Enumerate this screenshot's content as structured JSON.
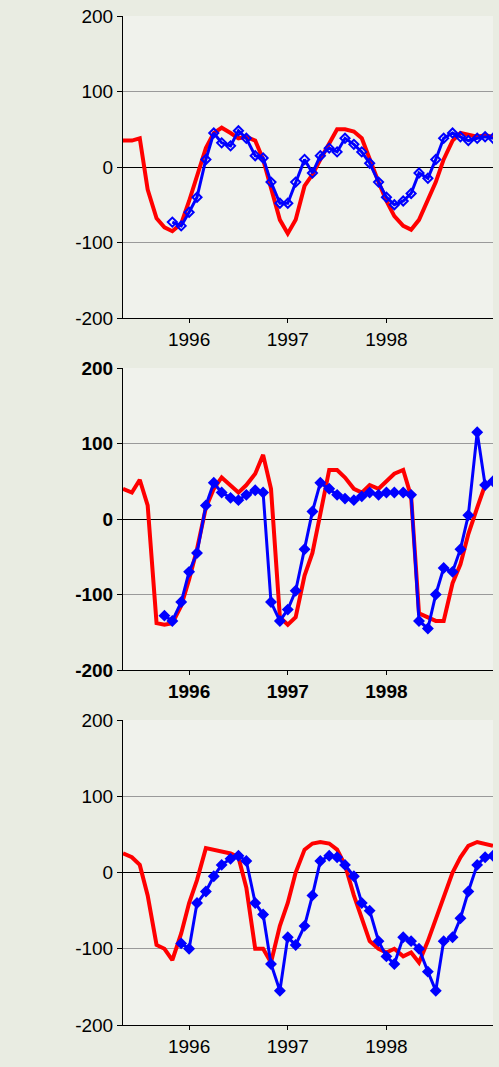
{
  "chart_data": [
    {
      "type": "line",
      "x": [
        1995.33,
        1995.42,
        1995.5,
        1995.58,
        1995.67,
        1995.75,
        1995.83,
        1995.92,
        1996,
        1996.08,
        1996.17,
        1996.25,
        1996.33,
        1996.42,
        1996.5,
        1996.58,
        1996.67,
        1996.75,
        1996.83,
        1996.92,
        1997,
        1997.08,
        1997.17,
        1997.25,
        1997.33,
        1997.42,
        1997.5,
        1997.58,
        1997.67,
        1997.75,
        1997.83,
        1997.92,
        1998,
        1998.08,
        1998.17,
        1998.25,
        1998.33,
        1998.42,
        1998.5,
        1998.58,
        1998.67,
        1998.75,
        1998.83,
        1998.92,
        1999,
        1999.08
      ],
      "series": [
        {
          "color": "#ff0000",
          "line_style": "solid",
          "values": [
            35,
            35,
            38,
            -30,
            -68,
            -80,
            -85,
            -75,
            -45,
            -10,
            25,
            45,
            52,
            45,
            38,
            40,
            35,
            10,
            -30,
            -70,
            -88,
            -70,
            -25,
            -10,
            10,
            30,
            50,
            50,
            47,
            38,
            10,
            -20,
            -45,
            -65,
            -78,
            -83,
            -70,
            -45,
            -20,
            10,
            35,
            45,
            42,
            40,
            42,
            40
          ]
        },
        {
          "color": "#0000ff",
          "line_style": "solid",
          "marker": "diamond-open",
          "values": [
            null,
            null,
            null,
            null,
            null,
            null,
            -73,
            -78,
            -60,
            -40,
            10,
            45,
            32,
            28,
            48,
            38,
            15,
            12,
            -20,
            -48,
            -48,
            -20,
            10,
            -8,
            15,
            25,
            20,
            38,
            30,
            20,
            5,
            -20,
            -40,
            -50,
            -45,
            -35,
            -8,
            -15,
            10,
            38,
            45,
            40,
            35,
            38,
            40,
            38
          ]
        }
      ],
      "xlim": [
        1995.33,
        1999.08
      ],
      "xticks": [
        1996,
        1997,
        1998
      ],
      "ylim": [
        -200,
        200
      ],
      "yticks": [
        -200,
        -100,
        0,
        100,
        200
      ],
      "grid": true
    },
    {
      "type": "line",
      "x": [
        1995.33,
        1995.42,
        1995.5,
        1995.58,
        1995.67,
        1995.75,
        1995.83,
        1995.92,
        1996,
        1996.08,
        1996.17,
        1996.25,
        1996.33,
        1996.42,
        1996.5,
        1996.58,
        1996.67,
        1996.75,
        1996.83,
        1996.92,
        1997,
        1997.08,
        1997.17,
        1997.25,
        1997.33,
        1997.42,
        1997.5,
        1997.58,
        1997.67,
        1997.75,
        1997.83,
        1997.92,
        1998,
        1998.08,
        1998.17,
        1998.25,
        1998.33,
        1998.42,
        1998.5,
        1998.58,
        1998.67,
        1998.75,
        1998.83,
        1998.92,
        1999,
        1999.08
      ],
      "series": [
        {
          "color": "#ff0000",
          "line_style": "solid",
          "values": [
            40,
            35,
            52,
            18,
            -138,
            -140,
            -138,
            -115,
            -80,
            -40,
            15,
            40,
            55,
            45,
            35,
            45,
            60,
            85,
            40,
            -130,
            -140,
            -130,
            -75,
            -45,
            10,
            65,
            65,
            55,
            40,
            35,
            45,
            40,
            50,
            60,
            65,
            30,
            -125,
            -130,
            -135,
            -135,
            -85,
            -60,
            -20,
            15,
            45,
            50
          ]
        },
        {
          "color": "#0000ff",
          "line_style": "solid",
          "marker": "diamond",
          "values": [
            null,
            null,
            null,
            null,
            null,
            -128,
            -135,
            -110,
            -70,
            -45,
            18,
            48,
            35,
            28,
            25,
            32,
            38,
            35,
            -110,
            -135,
            -120,
            -95,
            -40,
            10,
            48,
            40,
            32,
            27,
            25,
            30,
            35,
            32,
            35,
            35,
            35,
            32,
            -135,
            -145,
            -100,
            -65,
            -70,
            -40,
            5,
            115,
            45,
            50
          ]
        }
      ],
      "xlim": [
        1995.33,
        1999.08
      ],
      "xticks": [
        1996,
        1997,
        1998
      ],
      "ylim": [
        -200,
        200
      ],
      "yticks": [
        -200,
        -100,
        0,
        100,
        200
      ],
      "grid": true
    },
    {
      "type": "line",
      "x": [
        1995.33,
        1995.42,
        1995.5,
        1995.58,
        1995.67,
        1995.75,
        1995.83,
        1995.92,
        1996,
        1996.08,
        1996.17,
        1996.25,
        1996.33,
        1996.42,
        1996.5,
        1996.58,
        1996.67,
        1996.75,
        1996.83,
        1996.92,
        1997,
        1997.08,
        1997.17,
        1997.25,
        1997.33,
        1997.42,
        1997.5,
        1997.58,
        1997.67,
        1997.75,
        1997.83,
        1997.92,
        1998,
        1998.08,
        1998.17,
        1998.25,
        1998.33,
        1998.42,
        1998.5,
        1998.58,
        1998.67,
        1998.75,
        1998.83,
        1998.92,
        1999,
        1999.08
      ],
      "series": [
        {
          "color": "#ff0000",
          "line_style": "solid",
          "values": [
            25,
            20,
            10,
            -30,
            -95,
            -100,
            -115,
            -80,
            -40,
            -10,
            32,
            30,
            28,
            25,
            20,
            -20,
            -100,
            -100,
            -118,
            -70,
            -40,
            0,
            30,
            38,
            40,
            38,
            30,
            10,
            -30,
            -60,
            -90,
            -100,
            -105,
            -100,
            -110,
            -105,
            -118,
            -90,
            -60,
            -30,
            0,
            20,
            35,
            40,
            38,
            35
          ]
        },
        {
          "color": "#0000ff",
          "line_style": "solid",
          "marker": "diamond",
          "values": [
            null,
            null,
            null,
            null,
            null,
            null,
            null,
            -93,
            -100,
            -40,
            -25,
            -5,
            10,
            18,
            22,
            15,
            -40,
            -55,
            -120,
            -155,
            -85,
            -95,
            -70,
            -30,
            15,
            22,
            20,
            10,
            -5,
            -40,
            -50,
            -90,
            -110,
            -120,
            -85,
            -90,
            -100,
            -130,
            -155,
            -90,
            -85,
            -60,
            -25,
            10,
            20,
            22
          ]
        }
      ],
      "xlim": [
        1995.33,
        1999.08
      ],
      "xticks": [
        1996,
        1997,
        1998
      ],
      "ylim": [
        -200,
        200
      ],
      "yticks": [
        -200,
        -100,
        0,
        100,
        200
      ],
      "grid": true
    }
  ]
}
